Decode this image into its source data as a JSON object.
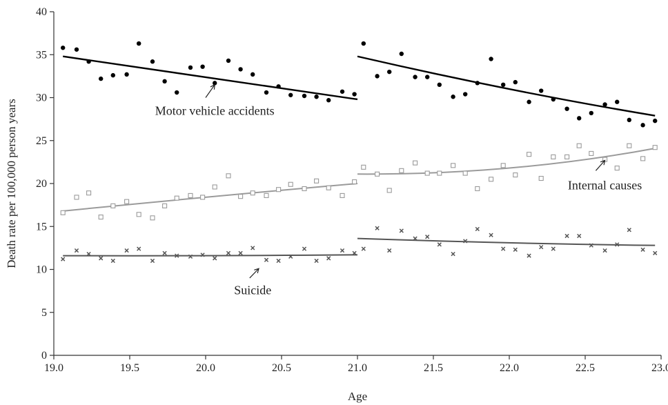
{
  "chart_data": {
    "type": "scatter",
    "title": "",
    "xlabel": "Age",
    "ylabel": "Death rate per 100,000 person years",
    "xlim": [
      19.0,
      23.0
    ],
    "ylim": [
      0,
      40
    ],
    "x_ticks": [
      "19.0",
      "19.5",
      "20.0",
      "20.5",
      "21.0",
      "21.5",
      "22.0",
      "22.5",
      "23.0"
    ],
    "y_ticks": [
      "0",
      "5",
      "10",
      "15",
      "20",
      "25",
      "30",
      "35",
      "40"
    ],
    "grid": false,
    "legend": "none",
    "discontinuity_at": 21.0,
    "series": [
      {
        "name": "Motor vehicle accidents",
        "marker": "filled-circle",
        "color": "#000000",
        "points": [
          [
            19.06,
            35.8
          ],
          [
            19.15,
            35.6
          ],
          [
            19.23,
            34.2
          ],
          [
            19.31,
            32.2
          ],
          [
            19.39,
            32.6
          ],
          [
            19.48,
            32.7
          ],
          [
            19.56,
            36.3
          ],
          [
            19.65,
            34.2
          ],
          [
            19.73,
            31.9
          ],
          [
            19.81,
            30.6
          ],
          [
            19.9,
            33.5
          ],
          [
            19.98,
            33.6
          ],
          [
            20.06,
            31.7
          ],
          [
            20.15,
            34.3
          ],
          [
            20.23,
            33.3
          ],
          [
            20.31,
            32.7
          ],
          [
            20.4,
            30.6
          ],
          [
            20.48,
            31.3
          ],
          [
            20.56,
            30.3
          ],
          [
            20.65,
            30.2
          ],
          [
            20.73,
            30.1
          ],
          [
            20.81,
            29.7
          ],
          [
            20.9,
            30.7
          ],
          [
            20.98,
            30.4
          ],
          [
            21.04,
            36.3
          ],
          [
            21.13,
            32.5
          ],
          [
            21.21,
            33.0
          ],
          [
            21.29,
            35.1
          ],
          [
            21.38,
            32.4
          ],
          [
            21.46,
            32.4
          ],
          [
            21.54,
            31.5
          ],
          [
            21.63,
            30.1
          ],
          [
            21.71,
            30.4
          ],
          [
            21.79,
            31.7
          ],
          [
            21.88,
            34.5
          ],
          [
            21.96,
            31.5
          ],
          [
            22.04,
            31.8
          ],
          [
            22.13,
            29.5
          ],
          [
            22.21,
            30.8
          ],
          [
            22.29,
            29.8
          ],
          [
            22.38,
            28.7
          ],
          [
            22.46,
            27.6
          ],
          [
            22.54,
            28.2
          ],
          [
            22.63,
            29.2
          ],
          [
            22.71,
            29.5
          ],
          [
            22.79,
            27.4
          ],
          [
            22.88,
            26.8
          ],
          [
            22.96,
            27.3
          ]
        ],
        "fit_left": [
          [
            19.06,
            34.8
          ],
          [
            20.0,
            32.4
          ],
          [
            21.0,
            29.8
          ]
        ],
        "fit_right": [
          [
            21.0,
            34.8
          ],
          [
            22.0,
            31.0
          ],
          [
            22.96,
            27.9
          ]
        ]
      },
      {
        "name": "Internal causes",
        "marker": "open-square",
        "color": "#9a9a9a",
        "points": [
          [
            19.06,
            16.6
          ],
          [
            19.15,
            18.4
          ],
          [
            19.23,
            18.9
          ],
          [
            19.31,
            16.1
          ],
          [
            19.39,
            17.4
          ],
          [
            19.48,
            17.9
          ],
          [
            19.56,
            16.4
          ],
          [
            19.65,
            16.0
          ],
          [
            19.73,
            17.4
          ],
          [
            19.81,
            18.3
          ],
          [
            19.9,
            18.6
          ],
          [
            19.98,
            18.4
          ],
          [
            20.06,
            19.6
          ],
          [
            20.15,
            20.9
          ],
          [
            20.23,
            18.5
          ],
          [
            20.31,
            18.9
          ],
          [
            20.4,
            18.6
          ],
          [
            20.48,
            19.3
          ],
          [
            20.56,
            19.9
          ],
          [
            20.65,
            19.4
          ],
          [
            20.73,
            20.3
          ],
          [
            20.81,
            19.5
          ],
          [
            20.9,
            18.6
          ],
          [
            20.98,
            20.2
          ],
          [
            21.04,
            21.9
          ],
          [
            21.13,
            21.1
          ],
          [
            21.21,
            19.2
          ],
          [
            21.29,
            21.5
          ],
          [
            21.38,
            22.4
          ],
          [
            21.46,
            21.2
          ],
          [
            21.54,
            21.2
          ],
          [
            21.63,
            22.1
          ],
          [
            21.71,
            21.2
          ],
          [
            21.79,
            19.4
          ],
          [
            21.88,
            20.5
          ],
          [
            21.96,
            22.1
          ],
          [
            22.04,
            21.0
          ],
          [
            22.13,
            23.4
          ],
          [
            22.21,
            20.6
          ],
          [
            22.29,
            23.1
          ],
          [
            22.38,
            23.1
          ],
          [
            22.46,
            24.4
          ],
          [
            22.54,
            23.5
          ],
          [
            22.63,
            22.8
          ],
          [
            22.71,
            21.8
          ],
          [
            22.79,
            24.4
          ],
          [
            22.88,
            22.9
          ],
          [
            22.96,
            24.2
          ]
        ],
        "fit_left": [
          [
            19.06,
            16.8
          ],
          [
            20.0,
            18.4
          ],
          [
            21.0,
            20.0
          ]
        ],
        "fit_right": [
          [
            21.0,
            21.1
          ],
          [
            22.0,
            21.8
          ],
          [
            22.96,
            24.1
          ]
        ]
      },
      {
        "name": "Suicide",
        "marker": "cross",
        "color": "#555555",
        "points": [
          [
            19.06,
            11.2
          ],
          [
            19.15,
            12.2
          ],
          [
            19.23,
            11.8
          ],
          [
            19.31,
            11.3
          ],
          [
            19.39,
            11.0
          ],
          [
            19.48,
            12.2
          ],
          [
            19.56,
            12.4
          ],
          [
            19.65,
            11.0
          ],
          [
            19.73,
            11.9
          ],
          [
            19.81,
            11.6
          ],
          [
            19.9,
            11.5
          ],
          [
            19.98,
            11.7
          ],
          [
            20.06,
            11.3
          ],
          [
            20.15,
            11.9
          ],
          [
            20.23,
            11.9
          ],
          [
            20.31,
            12.5
          ],
          [
            20.4,
            11.1
          ],
          [
            20.48,
            11.0
          ],
          [
            20.56,
            11.5
          ],
          [
            20.65,
            12.4
          ],
          [
            20.73,
            11.0
          ],
          [
            20.81,
            11.3
          ],
          [
            20.9,
            12.2
          ],
          [
            20.98,
            11.9
          ],
          [
            21.04,
            12.4
          ],
          [
            21.13,
            14.8
          ],
          [
            21.21,
            12.2
          ],
          [
            21.29,
            14.5
          ],
          [
            21.38,
            13.6
          ],
          [
            21.46,
            13.8
          ],
          [
            21.54,
            12.9
          ],
          [
            21.63,
            11.8
          ],
          [
            21.71,
            13.3
          ],
          [
            21.79,
            14.7
          ],
          [
            21.88,
            14.0
          ],
          [
            21.96,
            12.4
          ],
          [
            22.04,
            12.3
          ],
          [
            22.13,
            11.6
          ],
          [
            22.21,
            12.6
          ],
          [
            22.29,
            12.4
          ],
          [
            22.38,
            13.9
          ],
          [
            22.46,
            13.9
          ],
          [
            22.54,
            12.8
          ],
          [
            22.63,
            12.2
          ],
          [
            22.71,
            12.9
          ],
          [
            22.79,
            14.6
          ],
          [
            22.88,
            12.3
          ],
          [
            22.96,
            11.9
          ]
        ],
        "fit_left": [
          [
            19.06,
            11.6
          ],
          [
            20.0,
            11.6
          ],
          [
            21.0,
            11.7
          ]
        ],
        "fit_right": [
          [
            21.0,
            13.6
          ],
          [
            22.0,
            13.1
          ],
          [
            22.96,
            12.8
          ]
        ]
      }
    ],
    "annotations": [
      {
        "text": "Motor vehicle accidents",
        "label_at": [
          20.06,
          28.0
        ],
        "arrow_from": [
          20.0,
          30.0
        ],
        "arrow_to": [
          20.06,
          31.5
        ]
      },
      {
        "text": "Internal causes",
        "label_at": [
          22.63,
          19.3
        ],
        "arrow_from": [
          22.57,
          21.5
        ],
        "arrow_to": [
          22.63,
          22.7
        ]
      },
      {
        "text": "Suicide",
        "label_at": [
          20.31,
          7.1
        ],
        "arrow_from": [
          20.29,
          9.0
        ],
        "arrow_to": [
          20.35,
          10.1
        ]
      }
    ]
  }
}
